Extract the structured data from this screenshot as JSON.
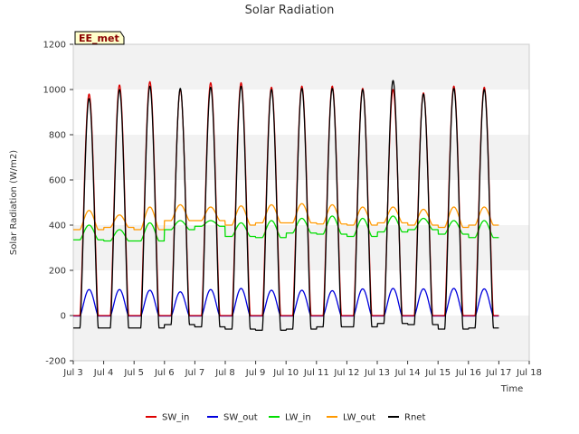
{
  "chart_data": {
    "type": "line",
    "title": "Solar Radiation",
    "xlabel": "Time",
    "ylabel": "Solar Radiation (W/m2)",
    "badge": "EE_met",
    "xlim": [
      3,
      18
    ],
    "ylim": [
      -200,
      1200
    ],
    "x_ticks": [
      {
        "value": 3,
        "label": "Jul 3"
      },
      {
        "value": 4,
        "label": "Jul 4"
      },
      {
        "value": 5,
        "label": "Jul 5"
      },
      {
        "value": 6,
        "label": "Jul 6"
      },
      {
        "value": 7,
        "label": "Jul 7"
      },
      {
        "value": 8,
        "label": "Jul 8"
      },
      {
        "value": 9,
        "label": "Jul 9"
      },
      {
        "value": 10,
        "label": "Jul 10"
      },
      {
        "value": 11,
        "label": "Jul 11"
      },
      {
        "value": 12,
        "label": "Jul 12"
      },
      {
        "value": 13,
        "label": "Jul 13"
      },
      {
        "value": 14,
        "label": "Jul 14"
      },
      {
        "value": 15,
        "label": "Jul 15"
      },
      {
        "value": 16,
        "label": "Jul 16"
      },
      {
        "value": 17,
        "label": "Jul 17"
      },
      {
        "value": 18,
        "label": "Jul 18"
      }
    ],
    "y_ticks": [
      -200,
      0,
      200,
      400,
      600,
      800,
      1000,
      1200
    ],
    "grid": "horizontal bands",
    "legend_position": "bottom-center",
    "days": [
      3.5,
      4.5,
      5.5,
      6.5,
      7.5,
      8.5,
      9.5,
      10.5,
      11.5,
      12.5,
      13.5,
      14.5,
      15.5,
      16.5
    ],
    "series": [
      {
        "name": "SW_in",
        "color": "#dd0000",
        "daily_peak": [
          980,
          1020,
          1035,
          1000,
          1030,
          1030,
          1010,
          1015,
          1015,
          1005,
          1000,
          985,
          1015,
          1010
        ],
        "night_value": 0
      },
      {
        "name": "SW_out",
        "color": "#0000dd",
        "daily_peak": [
          115,
          115,
          112,
          105,
          115,
          120,
          112,
          112,
          110,
          118,
          120,
          118,
          120,
          118
        ],
        "night_value": -2
      },
      {
        "name": "LW_in",
        "color": "#00dd00",
        "daily_peak": [
          400,
          380,
          410,
          420,
          420,
          410,
          420,
          430,
          440,
          430,
          440,
          430,
          420,
          420
        ],
        "night_value": [
          335,
          330,
          330,
          380,
          395,
          350,
          345,
          365,
          360,
          350,
          370,
          380,
          360,
          345
        ]
      },
      {
        "name": "LW_out",
        "color": "#ff9900",
        "daily_peak": [
          465,
          445,
          480,
          490,
          480,
          485,
          490,
          495,
          490,
          480,
          480,
          470,
          480,
          480
        ],
        "night_value": [
          380,
          390,
          380,
          420,
          420,
          400,
          410,
          410,
          405,
          400,
          410,
          400,
          390,
          400
        ]
      },
      {
        "name": "Rnet",
        "color": "#000000",
        "daily_peak": [
          960,
          1000,
          1015,
          1005,
          1010,
          1015,
          1000,
          1005,
          1005,
          1000,
          1040,
          980,
          1005,
          1000
        ],
        "night_value": [
          -55,
          -55,
          -55,
          -40,
          -50,
          -60,
          -65,
          -60,
          -50,
          -50,
          -35,
          -40,
          -60,
          -55
        ]
      }
    ]
  }
}
